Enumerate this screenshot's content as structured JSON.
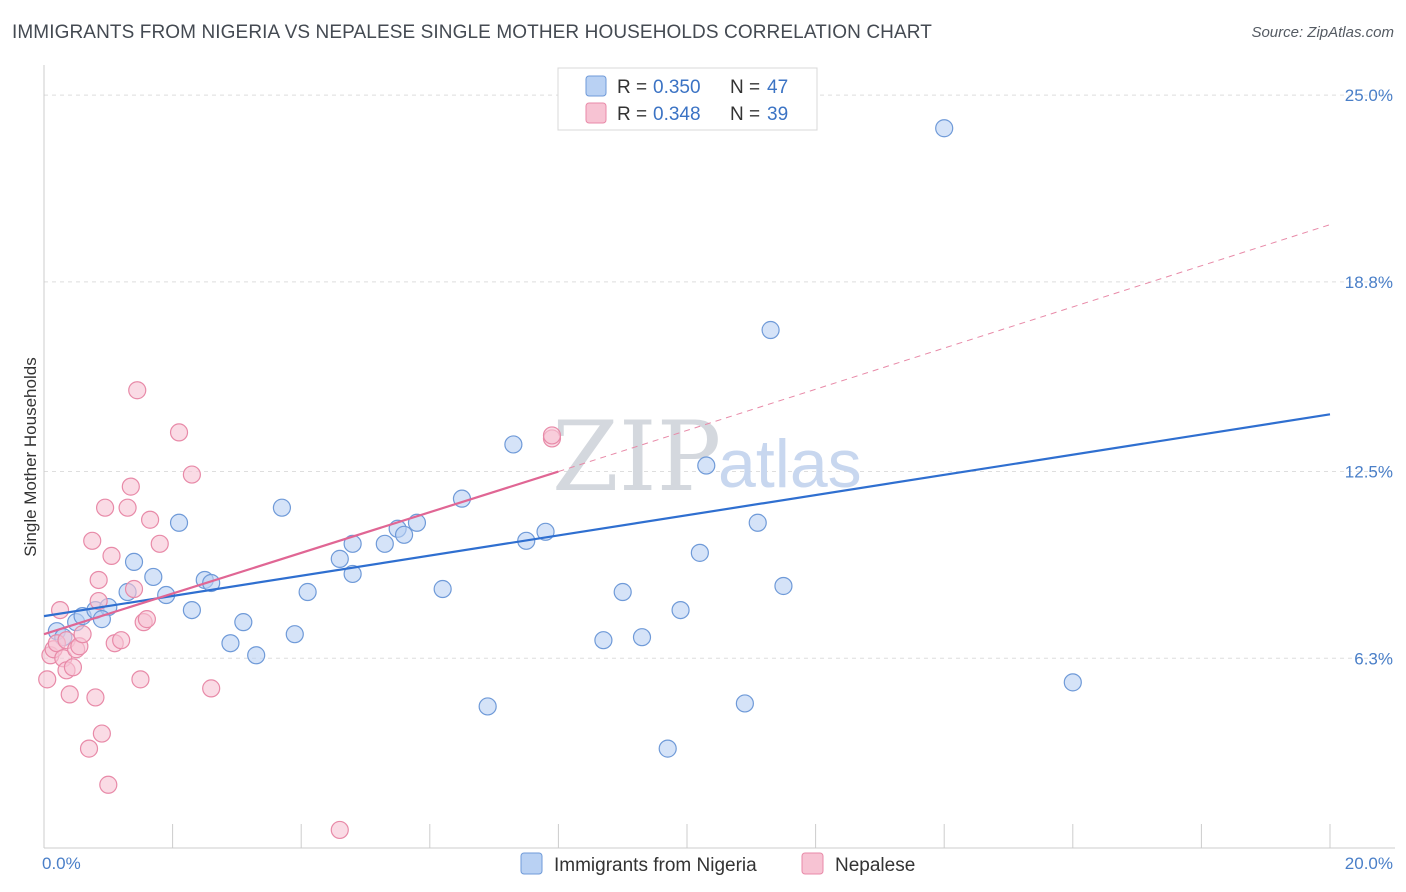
{
  "header": {
    "title": "IMMIGRANTS FROM NIGERIA VS NEPALESE SINGLE MOTHER HOUSEHOLDS CORRELATION CHART",
    "source": "Source: ZipAtlas.com"
  },
  "watermark": {
    "zip": "ZIP",
    "atlas": "atlas"
  },
  "chart_data": {
    "type": "scatter",
    "title": "IMMIGRANTS FROM NIGERIA VS NEPALESE SINGLE MOTHER HOUSEHOLDS CORRELATION CHART",
    "xlabel": "",
    "ylabel": "Single Mother Households",
    "xlim": [
      0,
      20
    ],
    "ylim": [
      0,
      26
    ],
    "x_tick_labels": [
      {
        "value": 0,
        "label": "0.0%"
      },
      {
        "value": 20,
        "label": "20.0%"
      }
    ],
    "y_tick_labels": [
      {
        "value": 6.3,
        "label": "6.3%"
      },
      {
        "value": 12.5,
        "label": "12.5%"
      },
      {
        "value": 18.8,
        "label": "18.8%"
      },
      {
        "value": 25.0,
        "label": "25.0%"
      }
    ],
    "grid": true,
    "legend_position": "top-center",
    "colors": {
      "nigeria_fill": "#b9d1f3",
      "nigeria_stroke": "#6f9ad8",
      "nigeria_line": "#2f6fd0",
      "nepalese_fill": "#f7c3d3",
      "nepalese_stroke": "#e88aa8",
      "nepalese_line": "#e06694",
      "tick_text": "#4a7fc8"
    },
    "legend": [
      {
        "r_label": "R =",
        "r_value": "0.350",
        "n_label": "N =",
        "n_value": "47"
      },
      {
        "r_label": "R =",
        "r_value": "0.348",
        "n_label": "N =",
        "n_value": "39"
      }
    ],
    "series": [
      {
        "name": "Immigrants from Nigeria",
        "trend": {
          "x0": 0,
          "y0": 7.7,
          "x1": 20,
          "y1": 14.4
        },
        "points": [
          [
            0.2,
            7.2
          ],
          [
            0.3,
            7.0
          ],
          [
            0.5,
            7.5
          ],
          [
            0.6,
            7.7
          ],
          [
            0.8,
            7.9
          ],
          [
            1.0,
            8.0
          ],
          [
            0.9,
            7.6
          ],
          [
            1.3,
            8.5
          ],
          [
            1.4,
            9.5
          ],
          [
            1.7,
            9.0
          ],
          [
            1.9,
            8.4
          ],
          [
            2.1,
            10.8
          ],
          [
            2.3,
            7.9
          ],
          [
            2.5,
            8.9
          ],
          [
            2.6,
            8.8
          ],
          [
            2.9,
            6.8
          ],
          [
            3.1,
            7.5
          ],
          [
            3.3,
            6.4
          ],
          [
            3.7,
            11.3
          ],
          [
            3.9,
            7.1
          ],
          [
            4.1,
            8.5
          ],
          [
            4.6,
            9.6
          ],
          [
            4.8,
            10.1
          ],
          [
            4.8,
            9.1
          ],
          [
            5.3,
            10.1
          ],
          [
            5.5,
            10.6
          ],
          [
            5.6,
            10.4
          ],
          [
            5.8,
            10.8
          ],
          [
            6.2,
            8.6
          ],
          [
            6.5,
            11.6
          ],
          [
            6.9,
            4.7
          ],
          [
            7.3,
            13.4
          ],
          [
            7.5,
            10.2
          ],
          [
            7.8,
            10.5
          ],
          [
            8.7,
            6.9
          ],
          [
            9.0,
            8.5
          ],
          [
            9.3,
            7.0
          ],
          [
            9.7,
            3.3
          ],
          [
            9.9,
            7.9
          ],
          [
            10.2,
            9.8
          ],
          [
            10.3,
            12.7
          ],
          [
            10.9,
            4.8
          ],
          [
            11.1,
            10.8
          ],
          [
            11.3,
            17.2
          ],
          [
            11.5,
            8.7
          ],
          [
            14.0,
            23.9
          ],
          [
            16.0,
            5.5
          ]
        ]
      },
      {
        "name": "Nepalese",
        "trend": {
          "x0": 0,
          "y0": 7.1,
          "x1": 8.0,
          "y1": 12.5
        },
        "dashed_extension": {
          "x0": 8.0,
          "y0": 12.5,
          "x1": 20,
          "y1": 20.7
        },
        "points": [
          [
            0.05,
            5.6
          ],
          [
            0.1,
            6.4
          ],
          [
            0.15,
            6.6
          ],
          [
            0.2,
            6.8
          ],
          [
            0.25,
            7.9
          ],
          [
            0.3,
            6.3
          ],
          [
            0.35,
            5.9
          ],
          [
            0.35,
            6.9
          ],
          [
            0.4,
            5.1
          ],
          [
            0.45,
            6.0
          ],
          [
            0.5,
            6.6
          ],
          [
            0.55,
            6.7
          ],
          [
            0.6,
            7.1
          ],
          [
            0.7,
            3.3
          ],
          [
            0.75,
            10.2
          ],
          [
            0.8,
            5.0
          ],
          [
            0.85,
            8.9
          ],
          [
            0.85,
            8.2
          ],
          [
            0.9,
            3.8
          ],
          [
            0.95,
            11.3
          ],
          [
            1.0,
            2.1
          ],
          [
            1.05,
            9.7
          ],
          [
            1.1,
            6.8
          ],
          [
            1.2,
            6.9
          ],
          [
            1.3,
            11.3
          ],
          [
            1.35,
            12.0
          ],
          [
            1.4,
            8.6
          ],
          [
            1.45,
            15.2
          ],
          [
            1.5,
            5.6
          ],
          [
            1.55,
            7.5
          ],
          [
            1.6,
            7.6
          ],
          [
            1.65,
            10.9
          ],
          [
            1.8,
            10.1
          ],
          [
            2.1,
            13.8
          ],
          [
            2.3,
            12.4
          ],
          [
            2.6,
            5.3
          ],
          [
            4.6,
            0.6
          ],
          [
            7.9,
            13.6
          ],
          [
            7.9,
            13.7
          ]
        ]
      }
    ]
  },
  "bottom_legend": [
    {
      "label": "Immigrants from Nigeria"
    },
    {
      "label": "Nepalese"
    }
  ]
}
